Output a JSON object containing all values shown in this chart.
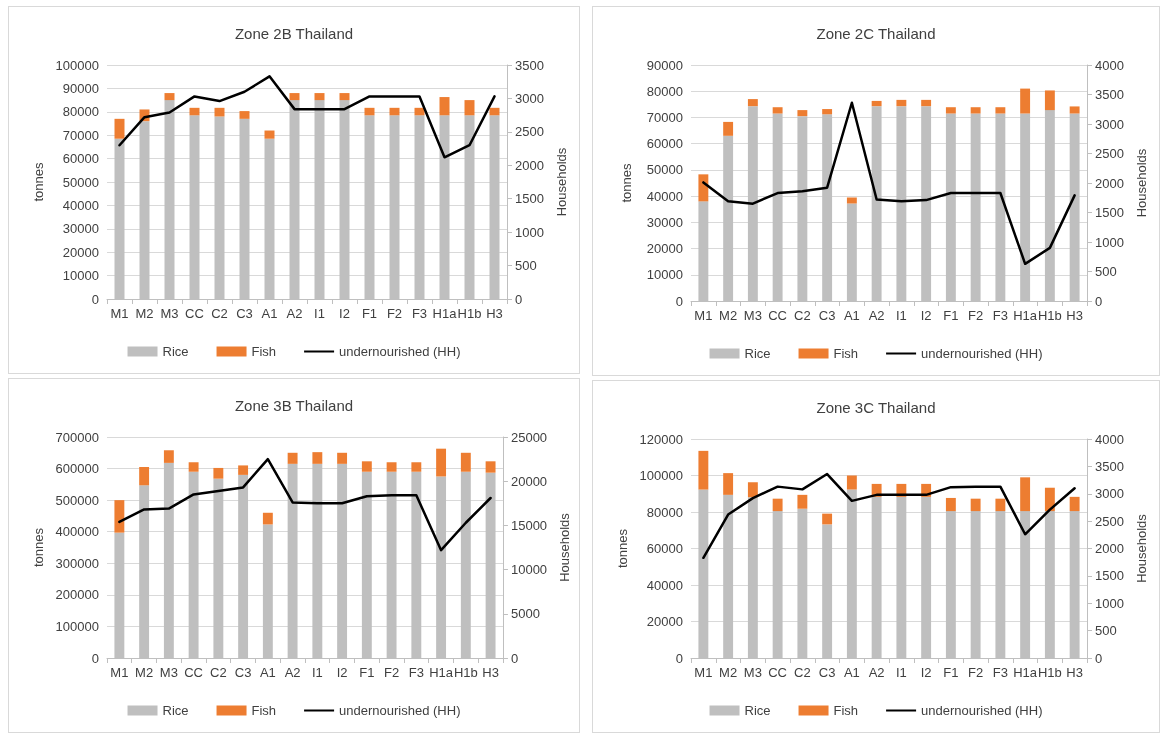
{
  "chart_data": [
    {
      "type": "bar",
      "title": "Zone 2B Thailand",
      "ylabel": "tonnes",
      "y2label": "Households",
      "stacked": true,
      "grid": "y",
      "legend": "bottom",
      "marker": "none",
      "categories": [
        "M1",
        "M2",
        "M3",
        "CC",
        "C2",
        "C3",
        "A1",
        "A2",
        "I1",
        "I2",
        "F1",
        "F2",
        "F3",
        "H1a",
        "H1b",
        "H3"
      ],
      "ylim": [
        0,
        100000
      ],
      "yticks": [
        0,
        10000,
        20000,
        30000,
        40000,
        50000,
        60000,
        70000,
        80000,
        90000,
        100000
      ],
      "y2lim": [
        0,
        3500
      ],
      "y2ticks": [
        0,
        500,
        1000,
        1500,
        2000,
        2500,
        3000,
        3500
      ],
      "series": [
        {
          "name": "Rice",
          "color": "#bfbfbf",
          "values": [
            68500,
            76000,
            85000,
            78500,
            78000,
            77000,
            68500,
            85000,
            85000,
            85000,
            78500,
            78500,
            78500,
            78500,
            78500,
            78500
          ]
        },
        {
          "name": "Fish",
          "color": "#ed7d31",
          "values": [
            8500,
            5000,
            3000,
            3200,
            3700,
            3300,
            3500,
            3000,
            3000,
            3000,
            3200,
            3200,
            3200,
            7800,
            6500,
            3200
          ]
        },
        {
          "name": "undernourished (HH)",
          "type": "line",
          "axis": "y2",
          "color": "#000000",
          "values": [
            2300,
            2720,
            2790,
            3030,
            2960,
            3100,
            3330,
            2840,
            2840,
            2840,
            3030,
            3030,
            3030,
            2120,
            2300,
            3030
          ]
        }
      ]
    },
    {
      "type": "bar",
      "title": "Zone 2C Thailand",
      "ylabel": "tonnes",
      "y2label": "Households",
      "stacked": true,
      "grid": "y",
      "legend": "bottom",
      "marker": "none",
      "categories": [
        "M1",
        "M2",
        "M3",
        "CC",
        "C2",
        "C3",
        "A1",
        "A2",
        "I1",
        "I2",
        "F1",
        "F2",
        "F3",
        "H1a",
        "H1b",
        "H3"
      ],
      "ylim": [
        0,
        90000
      ],
      "yticks": [
        0,
        10000,
        20000,
        30000,
        40000,
        50000,
        60000,
        70000,
        80000,
        90000
      ],
      "y2lim": [
        0,
        4000
      ],
      "y2ticks": [
        0,
        500,
        1000,
        1500,
        2000,
        2500,
        3000,
        3500,
        4000
      ],
      "series": [
        {
          "name": "Rice",
          "color": "#bfbfbf",
          "values": [
            38000,
            63000,
            74300,
            71500,
            70500,
            71200,
            37200,
            74300,
            74300,
            74300,
            71500,
            71500,
            71500,
            71500,
            72800,
            71500
          ]
        },
        {
          "name": "Fish",
          "color": "#ed7d31",
          "values": [
            10300,
            5300,
            2700,
            2400,
            2300,
            2000,
            2300,
            2000,
            2400,
            2400,
            2400,
            2400,
            2400,
            9500,
            7500,
            2700
          ]
        },
        {
          "name": "undernourished (HH)",
          "type": "line",
          "axis": "y2",
          "color": "#000000",
          "values": [
            2010,
            1690,
            1650,
            1830,
            1860,
            1920,
            3360,
            1720,
            1690,
            1710,
            1830,
            1830,
            1830,
            630,
            900,
            1790
          ]
        }
      ]
    },
    {
      "type": "bar",
      "title": "Zone 3B Thailand",
      "ylabel": "tonnes",
      "y2label": "Households",
      "stacked": true,
      "grid": "y",
      "legend": "bottom",
      "marker": "none",
      "categories": [
        "M1",
        "M2",
        "M3",
        "CC",
        "C2",
        "C3",
        "A1",
        "A2",
        "I1",
        "I2",
        "F1",
        "F2",
        "F3",
        "H1a",
        "H1b",
        "H3"
      ],
      "ylim": [
        0,
        700000
      ],
      "yticks": [
        0,
        100000,
        200000,
        300000,
        400000,
        500000,
        600000,
        700000
      ],
      "y2lim": [
        0,
        25000
      ],
      "y2ticks": [
        0,
        5000,
        10000,
        15000,
        20000,
        25000
      ],
      "series": [
        {
          "name": "Rice",
          "color": "#bfbfbf",
          "values": [
            397000,
            547000,
            618000,
            590000,
            568000,
            580000,
            423000,
            615000,
            615000,
            615000,
            590000,
            590000,
            590000,
            575000,
            590000,
            587000
          ]
        },
        {
          "name": "Fish",
          "color": "#ed7d31",
          "values": [
            103000,
            58000,
            40000,
            30000,
            34000,
            30000,
            37000,
            35000,
            37000,
            35000,
            33000,
            30000,
            30000,
            88000,
            60000,
            36000
          ]
        },
        {
          "name": "undernourished (HH)",
          "type": "line",
          "axis": "y2",
          "color": "#000000",
          "values": [
            15400,
            16800,
            16900,
            18500,
            18900,
            19300,
            22500,
            17600,
            17500,
            17500,
            18300,
            18400,
            18400,
            12200,
            15300,
            18100
          ]
        }
      ]
    },
    {
      "type": "bar",
      "title": "Zone 3C Thailand",
      "ylabel": "tonnes",
      "y2label": "Households",
      "stacked": true,
      "grid": "y",
      "legend": "bottom",
      "marker": "none",
      "categories": [
        "M1",
        "M2",
        "M3",
        "CC",
        "C2",
        "C3",
        "A1",
        "A2",
        "I1",
        "I2",
        "F1",
        "F2",
        "F3",
        "H1a",
        "H1b",
        "H3"
      ],
      "ylim": [
        0,
        120000
      ],
      "yticks": [
        0,
        20000,
        40000,
        60000,
        80000,
        100000,
        120000
      ],
      "y2lim": [
        0,
        4000
      ],
      "y2ticks": [
        0,
        500,
        1000,
        1500,
        2000,
        2500,
        3000,
        3500,
        4000
      ],
      "series": [
        {
          "name": "Rice",
          "color": "#bfbfbf",
          "values": [
            92300,
            89400,
            88100,
            80500,
            81800,
            73200,
            92300,
            88300,
            88300,
            88300,
            80500,
            80500,
            80500,
            80500,
            80500,
            80500
          ]
        },
        {
          "name": "Fish",
          "color": "#ed7d31",
          "values": [
            21200,
            11900,
            8200,
            6800,
            7600,
            5900,
            7700,
            7100,
            7100,
            7100,
            7200,
            6800,
            6800,
            18500,
            12800,
            7800
          ]
        },
        {
          "name": "undernourished (HH)",
          "type": "line",
          "axis": "y2",
          "color": "#000000",
          "values": [
            1830,
            2620,
            2920,
            3130,
            3080,
            3360,
            2870,
            2980,
            2980,
            2980,
            3120,
            3130,
            3130,
            2260,
            2710,
            3100
          ]
        }
      ]
    }
  ]
}
